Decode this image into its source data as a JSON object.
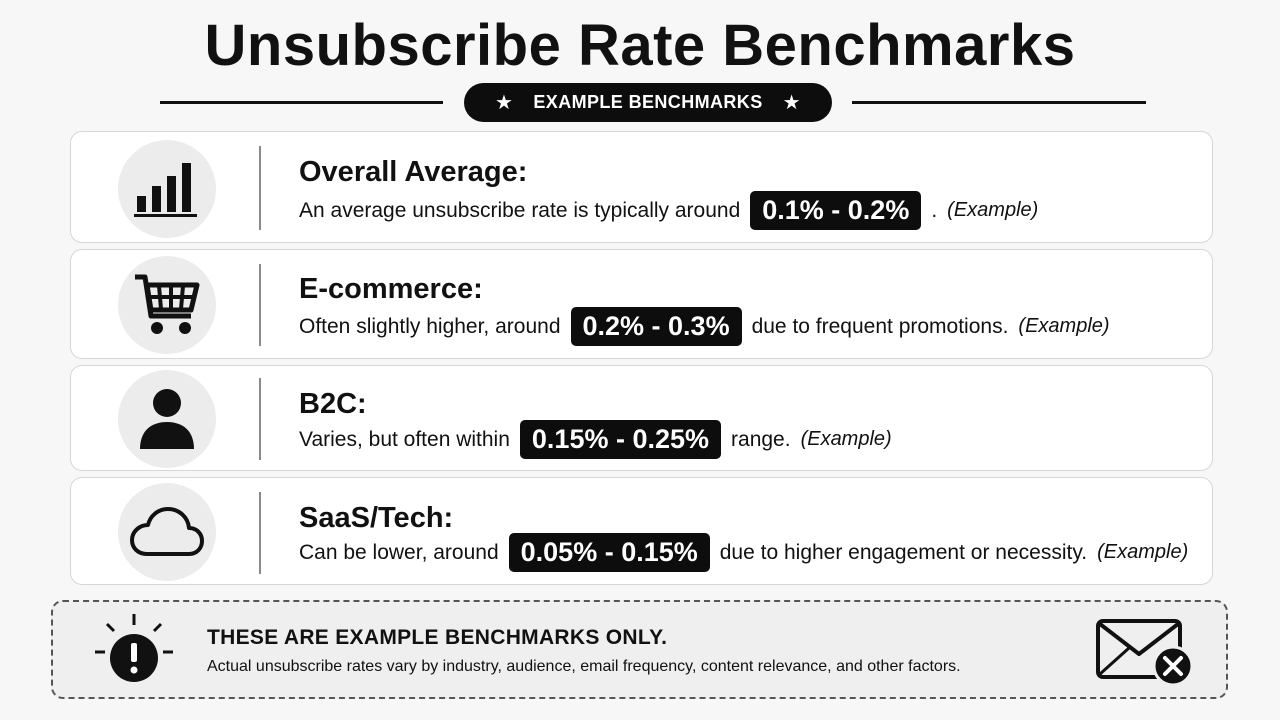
{
  "header": {
    "title": "Unsubscribe Rate Benchmarks",
    "pill_label": "EXAMPLE BENCHMARKS",
    "pill_star": "★"
  },
  "cards": [
    {
      "icon": "bar-chart-icon",
      "title": "Overall Average:",
      "before": "An average unsubscribe rate is typically around",
      "range": "0.1% - 0.2%",
      "after": ".",
      "note": "(Example)"
    },
    {
      "icon": "shopping-cart-icon",
      "title": "E-commerce:",
      "before": "Often slightly higher, around",
      "range": "0.2% - 0.3%",
      "after": "due to frequent promotions.",
      "note": "(Example)"
    },
    {
      "icon": "person-icon",
      "title": "B2C:",
      "before": "Varies, but often within",
      "range": "0.15% - 0.25%",
      "after": "range.",
      "note": "(Example)"
    },
    {
      "icon": "cloud-icon",
      "title": "SaaS/Tech:",
      "before": "Can be lower, around",
      "range": "0.05% - 0.15%",
      "after": "due to higher engagement or necessity.",
      "note": "(Example)"
    }
  ],
  "footer": {
    "title": "THESE ARE EXAMPLE BENCHMARKS ONLY.",
    "text": "Actual unsubscribe rates vary by industry, audience, email frequency, content relevance, and other factors.",
    "left_icon": "warning-icon",
    "right_icon": "mail-unsubscribe-icon"
  },
  "colors": {
    "background": "#f7f7f7",
    "card": "#ffffff",
    "badge": "#0d0d0d",
    "icon_circle": "#ececec"
  }
}
